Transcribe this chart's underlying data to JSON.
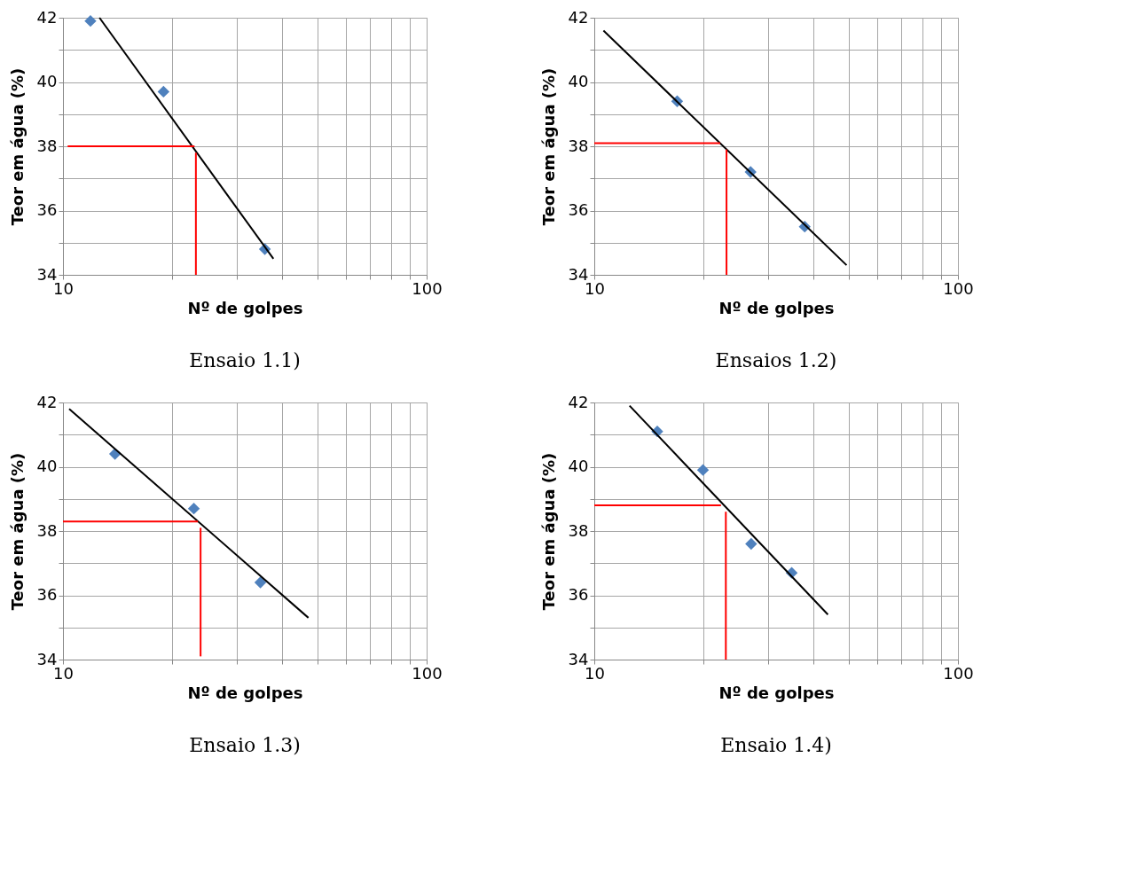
{
  "chart_data": [
    {
      "type": "scatter",
      "title": "Ensaio 1.1)",
      "xlabel": "Nº de golpes",
      "ylabel": "Teor em água (%)",
      "log": "x",
      "grid": true,
      "xlim": [
        10,
        100
      ],
      "xticks": [
        10,
        {
          "value": 20,
          "label": null
        },
        {
          "value": 30,
          "label": null
        },
        {
          "value": 40,
          "label": null
        },
        {
          "value": 50,
          "label": null
        },
        {
          "value": 60,
          "label": null
        },
        {
          "value": 70,
          "label": null
        },
        {
          "value": 80,
          "label": null
        },
        {
          "value": 90,
          "label": null
        },
        100
      ],
      "ylim": [
        34,
        42
      ],
      "yticks": [
        34,
        {
          "value": 35,
          "label": null
        },
        36,
        {
          "value": 37,
          "label": null
        },
        38,
        {
          "value": 39,
          "label": null
        },
        40,
        {
          "value": 41,
          "label": null
        },
        42
      ],
      "series": [
        {
          "marker": "diamond",
          "color": "#4f81bd",
          "x": [
            11.9,
            18.9,
            35.9
          ],
          "values": [
            41.9,
            39.7,
            34.8
          ]
        },
        {
          "type": "line",
          "marker": "none",
          "color": "#000000",
          "x": [
            12.6,
            37.9
          ],
          "values": [
            42.0,
            34.5
          ]
        },
        {
          "type": "line",
          "marker": "none",
          "color": "#ff0000",
          "x": [
            23.2,
            23.2
          ],
          "values": [
            34,
            37.8
          ]
        },
        {
          "type": "line",
          "marker": "none",
          "color": "#ff0000",
          "x": [
            23.0,
            10.3
          ],
          "values": [
            38.0,
            38.0
          ]
        }
      ]
    },
    {
      "type": "scatter",
      "title": "Ensaios 1.2)",
      "xlabel": "Nº de golpes",
      "ylabel": "Teor em água (%)",
      "log": "x",
      "grid": true,
      "xlim": [
        10,
        100
      ],
      "xticks": [
        10,
        {
          "value": 20,
          "label": null
        },
        {
          "value": 30,
          "label": null
        },
        {
          "value": 40,
          "label": null
        },
        {
          "value": 50,
          "label": null
        },
        {
          "value": 60,
          "label": null
        },
        {
          "value": 70,
          "label": null
        },
        {
          "value": 80,
          "label": null
        },
        {
          "value": 90,
          "label": null
        },
        100
      ],
      "ylim": [
        34,
        42
      ],
      "yticks": [
        34,
        {
          "value": 35,
          "label": null
        },
        36,
        {
          "value": 37,
          "label": null
        },
        38,
        {
          "value": 39,
          "label": null
        },
        40,
        {
          "value": 41,
          "label": null
        },
        42
      ],
      "series": [
        {
          "marker": "diamond",
          "color": "#4f81bd",
          "x": [
            16.9,
            26.9,
            37.9
          ],
          "values": [
            39.4,
            37.2,
            35.5
          ]
        },
        {
          "type": "line",
          "marker": "none",
          "color": "#000000",
          "x": [
            10.6,
            49.4
          ],
          "values": [
            41.6,
            34.3
          ]
        },
        {
          "type": "line",
          "marker": "none",
          "color": "#ff0000",
          "x": [
            23.1,
            23.1
          ],
          "values": [
            34,
            37.9
          ]
        },
        {
          "type": "line",
          "marker": "none",
          "color": "#ff0000",
          "x": [
            22.2,
            10
          ],
          "values": [
            38.1,
            38.1
          ]
        }
      ]
    },
    {
      "type": "scatter",
      "title": "Ensaio 1.3)",
      "xlabel": "Nº de golpes",
      "ylabel": "Teor em água (%)",
      "log": "x",
      "grid": true,
      "xlim": [
        10,
        100
      ],
      "xticks": [
        10,
        {
          "value": 20,
          "label": null
        },
        {
          "value": 30,
          "label": null
        },
        {
          "value": 40,
          "label": null
        },
        {
          "value": 50,
          "label": null
        },
        {
          "value": 60,
          "label": null
        },
        {
          "value": 70,
          "label": null
        },
        {
          "value": 80,
          "label": null
        },
        {
          "value": 90,
          "label": null
        },
        100
      ],
      "ylim": [
        34,
        42
      ],
      "yticks": [
        34,
        {
          "value": 35,
          "label": null
        },
        36,
        {
          "value": 37,
          "label": null
        },
        38,
        {
          "value": 39,
          "label": null
        },
        40,
        {
          "value": 41,
          "label": null
        },
        42
      ],
      "series": [
        {
          "marker": "diamond",
          "color": "#4f81bd",
          "x": [
            13.9,
            22.9,
            34.9
          ],
          "values": [
            40.4,
            38.7,
            36.4
          ]
        },
        {
          "type": "line",
          "marker": "none",
          "color": "#000000",
          "x": [
            10.4,
            47.3
          ],
          "values": [
            41.8,
            35.3
          ]
        },
        {
          "type": "line",
          "marker": "none",
          "color": "#ff0000",
          "x": [
            23.9,
            23.9
          ],
          "values": [
            34.1,
            38.1
          ]
        },
        {
          "type": "line",
          "marker": "none",
          "color": "#ff0000",
          "x": [
            23.5,
            10
          ],
          "values": [
            38.3,
            38.3
          ]
        }
      ]
    },
    {
      "type": "scatter",
      "title": "Ensaio 1.4)",
      "xlabel": "Nº de golpes",
      "ylabel": "Teor em água (%)",
      "log": "x",
      "grid": true,
      "xlim": [
        10,
        100
      ],
      "xticks": [
        10,
        {
          "value": 20,
          "label": null
        },
        {
          "value": 30,
          "label": null
        },
        {
          "value": 40,
          "label": null
        },
        {
          "value": 50,
          "label": null
        },
        {
          "value": 60,
          "label": null
        },
        {
          "value": 70,
          "label": null
        },
        {
          "value": 80,
          "label": null
        },
        {
          "value": 90,
          "label": null
        },
        100
      ],
      "ylim": [
        34,
        42
      ],
      "yticks": [
        34,
        {
          "value": 35,
          "label": null
        },
        36,
        {
          "value": 37,
          "label": null
        },
        38,
        {
          "value": 39,
          "label": null
        },
        40,
        {
          "value": 41,
          "label": null
        },
        42
      ],
      "series": [
        {
          "marker": "diamond",
          "color": "#4f81bd",
          "x": [
            14.9,
            19.9,
            27.0,
            34.9
          ],
          "values": [
            41.1,
            39.9,
            37.6,
            36.7
          ]
        },
        {
          "type": "line",
          "marker": "none",
          "color": "#000000",
          "x": [
            12.5,
            43.9
          ],
          "values": [
            41.9,
            35.4
          ]
        },
        {
          "type": "line",
          "marker": "none",
          "color": "#ff0000",
          "x": [
            23.0,
            23.0
          ],
          "values": [
            34,
            38.6
          ]
        },
        {
          "type": "line",
          "marker": "none",
          "color": "#ff0000",
          "x": [
            22.3,
            10
          ],
          "values": [
            38.8,
            38.8
          ]
        }
      ]
    }
  ]
}
